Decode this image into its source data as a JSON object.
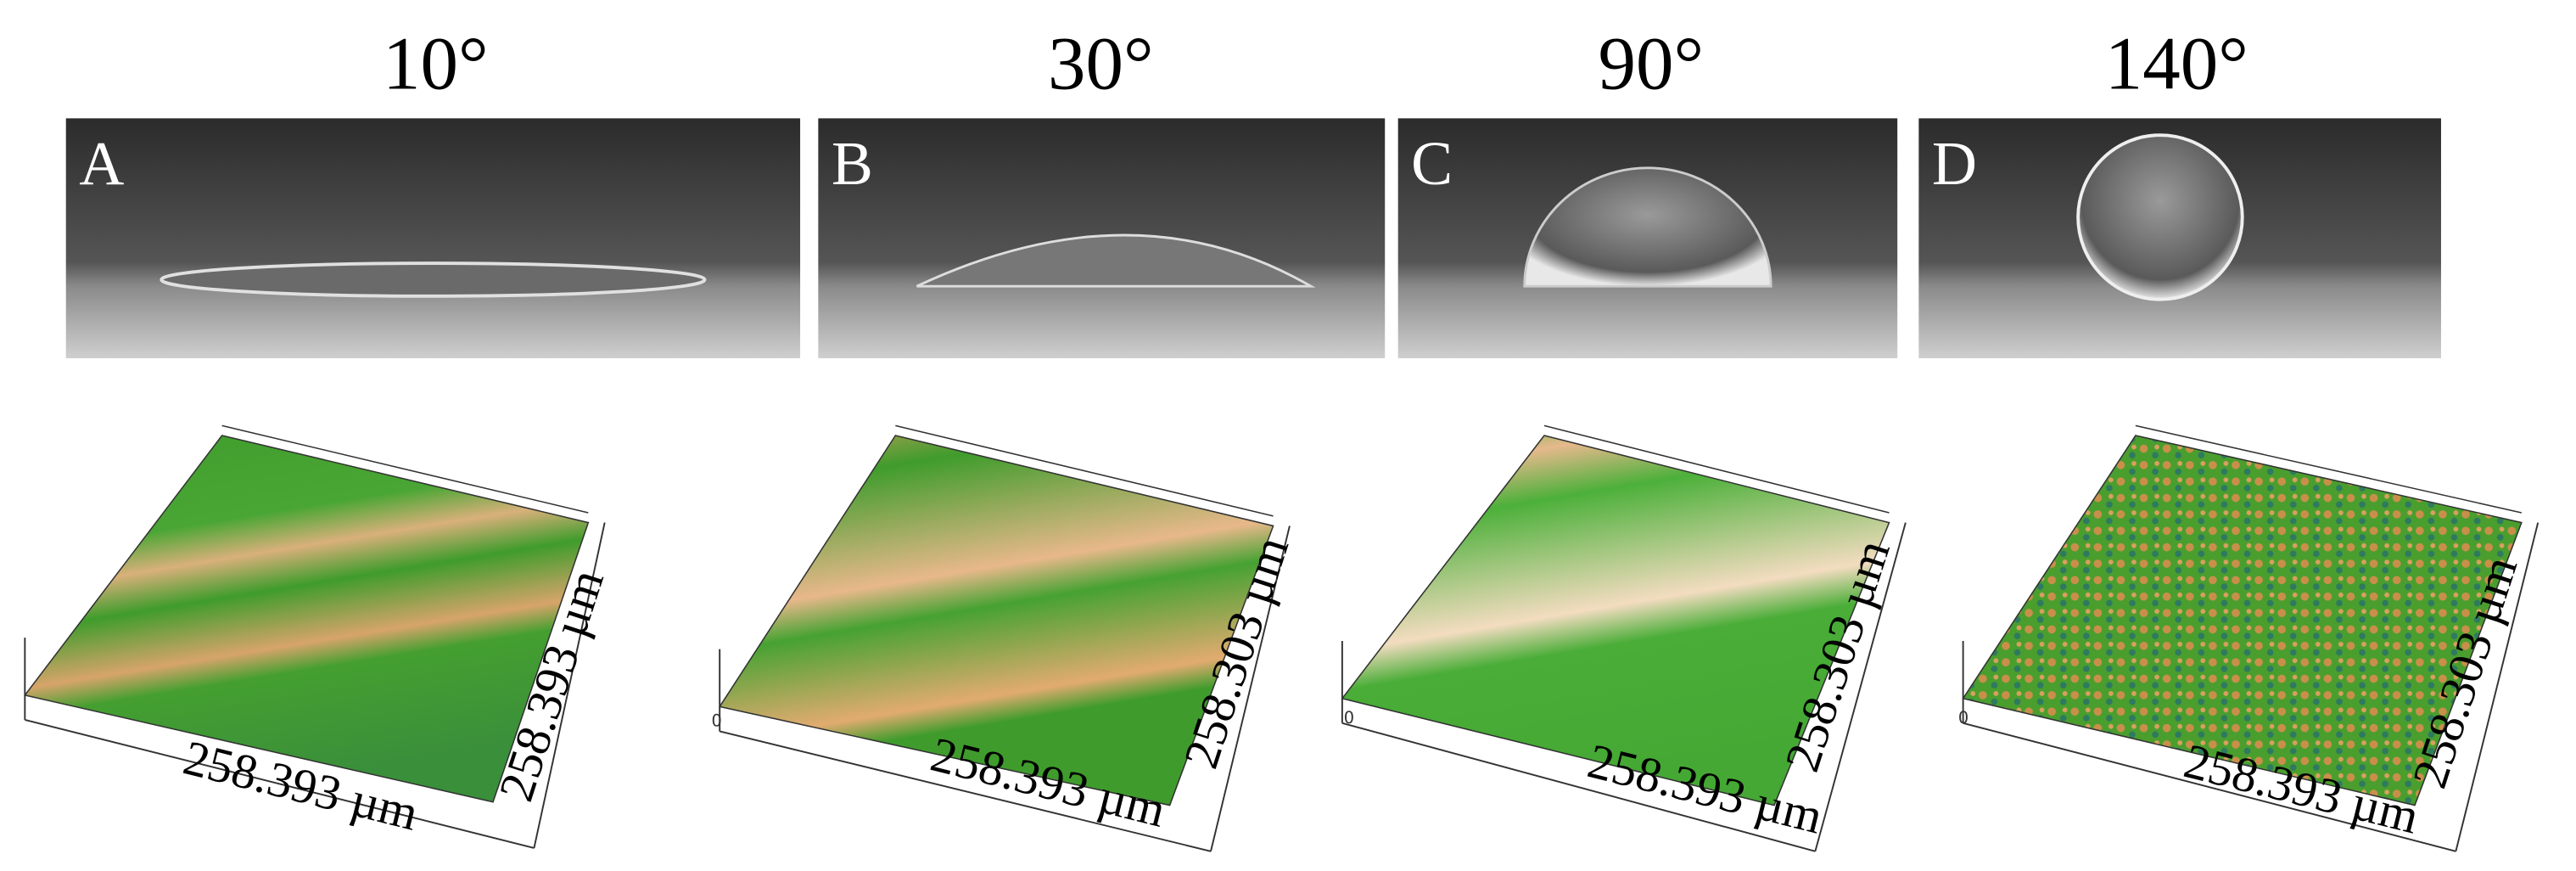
{
  "panels": [
    {
      "angle": "10°",
      "label": "A",
      "x_axis_label": "258.393 µm",
      "y_axis_label": "258.393 µm"
    },
    {
      "angle": "30°",
      "label": "B",
      "x_axis_label": "258.393 µm",
      "y_axis_label": "258.303 µm",
      "origin_label": "0"
    },
    {
      "angle": "90°",
      "label": "C",
      "x_axis_label": "258.393 µm",
      "y_axis_label": "258.303 µm",
      "origin_label": "0"
    },
    {
      "angle": "140°",
      "label": "D",
      "x_axis_label": "258.393 µm",
      "y_axis_label": "258.303 µm",
      "origin_label": "0"
    }
  ]
}
